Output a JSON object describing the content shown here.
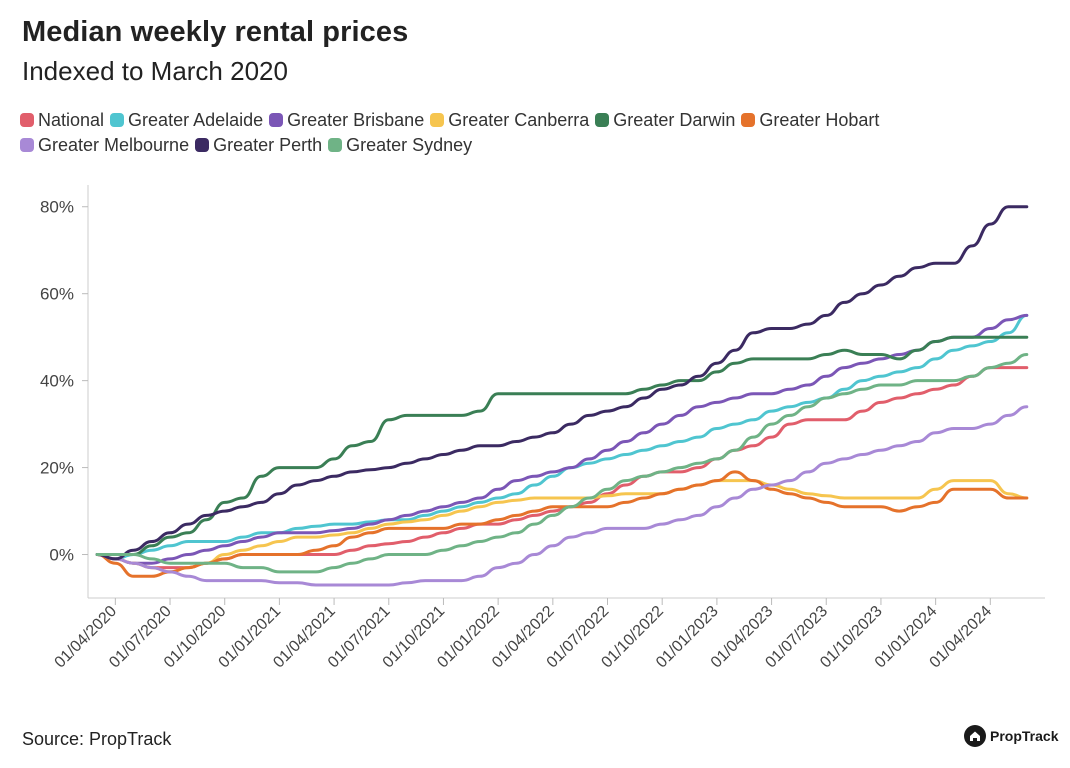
{
  "chart_data": {
    "type": "line",
    "title": "Median weekly rental prices",
    "subtitle": "Indexed to March 2020",
    "xlabel": "",
    "ylabel": "",
    "ylim": [
      -10,
      85
    ],
    "xlim": [
      -0.5,
      52
    ],
    "yticks": [
      0,
      20,
      40,
      60,
      80
    ],
    "ytick_labels": [
      "0%",
      "20%",
      "40%",
      "60%",
      "80%"
    ],
    "xticks": [
      1,
      4,
      7,
      10,
      13,
      16,
      19,
      22,
      25,
      28,
      31,
      34,
      37,
      40,
      43,
      46,
      49
    ],
    "xtick_labels": [
      "01/04/2020",
      "01/07/2020",
      "01/10/2020",
      "01/01/2021",
      "01/04/2021",
      "01/07/2021",
      "01/10/2021",
      "01/01/2022",
      "01/04/2022",
      "01/07/2022",
      "01/10/2022",
      "01/01/2023",
      "01/04/2023",
      "01/07/2023",
      "01/10/2023",
      "01/01/2024",
      "01/04/2024"
    ],
    "x_note": "x values are months since March 2020",
    "legend_position": "top",
    "series": [
      {
        "name": "National",
        "color": "#e15e6b",
        "x": [
          0,
          1,
          2,
          3,
          4,
          5,
          6,
          7,
          8,
          9,
          10,
          11,
          12,
          13,
          14,
          15,
          16,
          17,
          18,
          19,
          20,
          21,
          22,
          23,
          24,
          25,
          26,
          27,
          28,
          29,
          30,
          31,
          32,
          33,
          34,
          35,
          36,
          37,
          38,
          39,
          40,
          41,
          42,
          43,
          44,
          45,
          46,
          47,
          48,
          49,
          50,
          51
        ],
        "y": [
          0,
          -1,
          -2,
          -3,
          -3,
          -3,
          -2,
          -1,
          0,
          0,
          0,
          0,
          0,
          0,
          1,
          2,
          2.5,
          3,
          4,
          5,
          6,
          7,
          7,
          8,
          9,
          10,
          11,
          12,
          14,
          16,
          18,
          19,
          19,
          20,
          22,
          24,
          25,
          27,
          30,
          31,
          31,
          31,
          33,
          35,
          36,
          37,
          38,
          39,
          41,
          43,
          43,
          43
        ]
      },
      {
        "name": "Greater Adelaide",
        "color": "#4fc5d0",
        "x": [
          0,
          1,
          2,
          3,
          4,
          5,
          6,
          7,
          8,
          9,
          10,
          11,
          12,
          13,
          14,
          15,
          16,
          17,
          18,
          19,
          20,
          21,
          22,
          23,
          24,
          25,
          26,
          27,
          28,
          29,
          30,
          31,
          32,
          33,
          34,
          35,
          36,
          37,
          38,
          39,
          40,
          41,
          42,
          43,
          44,
          45,
          46,
          47,
          48,
          49,
          50,
          51
        ],
        "y": [
          0,
          -1,
          0,
          1,
          2,
          3,
          3,
          3,
          4,
          5,
          5,
          6,
          6.5,
          7,
          7,
          7.5,
          8,
          8,
          9,
          10,
          11,
          12,
          13,
          14,
          16,
          18,
          20,
          21,
          22,
          23,
          24,
          25,
          26,
          27,
          29,
          30,
          31,
          33,
          34,
          35,
          36,
          38,
          40,
          41,
          42,
          43,
          45,
          47,
          48,
          49,
          51,
          55
        ]
      },
      {
        "name": "Greater Brisbane",
        "color": "#7b56b6",
        "x": [
          0,
          1,
          2,
          3,
          4,
          5,
          6,
          7,
          8,
          9,
          10,
          11,
          12,
          13,
          14,
          15,
          16,
          17,
          18,
          19,
          20,
          21,
          22,
          23,
          24,
          25,
          26,
          27,
          28,
          29,
          30,
          31,
          32,
          33,
          34,
          35,
          36,
          37,
          38,
          39,
          40,
          41,
          42,
          43,
          44,
          45,
          46,
          47,
          48,
          49,
          50,
          51
        ],
        "y": [
          0,
          -1,
          -2,
          -2,
          -1,
          0,
          1,
          2,
          3,
          4,
          5,
          5,
          5,
          5.5,
          6,
          7,
          8,
          9,
          10,
          11,
          12,
          13,
          15,
          17,
          18,
          19,
          20,
          22,
          24,
          26,
          28,
          30,
          32,
          34,
          35,
          36,
          37,
          37,
          38,
          39,
          41,
          43,
          44,
          45,
          46,
          47,
          49,
          50,
          50,
          52,
          54,
          55
        ]
      },
      {
        "name": "Greater Canberra",
        "color": "#f6c54f",
        "x": [
          0,
          1,
          2,
          3,
          4,
          5,
          6,
          7,
          8,
          9,
          10,
          11,
          12,
          13,
          14,
          15,
          16,
          17,
          18,
          19,
          20,
          21,
          22,
          23,
          24,
          25,
          26,
          27,
          28,
          29,
          30,
          31,
          32,
          33,
          34,
          35,
          36,
          37,
          38,
          39,
          40,
          41,
          42,
          43,
          44,
          45,
          46,
          47,
          48,
          49,
          50,
          51
        ],
        "y": [
          0,
          -1,
          -2,
          -3,
          -4,
          -3,
          -2,
          0,
          1,
          2,
          3,
          4,
          4,
          4.5,
          5,
          6,
          7,
          7.5,
          8,
          9,
          10,
          11,
          12,
          12.5,
          13,
          13,
          13,
          13,
          13.5,
          14,
          14,
          14,
          15,
          16,
          17,
          17,
          17,
          16,
          15,
          14,
          13.5,
          13,
          13,
          13,
          13,
          13,
          15,
          17,
          17,
          17,
          14,
          13
        ]
      },
      {
        "name": "Greater Darwin",
        "color": "#3a7f55",
        "x": [
          0,
          1,
          2,
          3,
          4,
          5,
          6,
          7,
          8,
          9,
          10,
          11,
          12,
          13,
          14,
          15,
          16,
          17,
          18,
          19,
          20,
          21,
          22,
          23,
          24,
          25,
          26,
          27,
          28,
          29,
          30,
          31,
          32,
          33,
          34,
          35,
          36,
          37,
          38,
          39,
          40,
          41,
          42,
          43,
          44,
          45,
          46,
          47,
          48,
          49,
          50,
          51
        ],
        "y": [
          0,
          0,
          0,
          2,
          4,
          5,
          8,
          12,
          13,
          18,
          20,
          20,
          20,
          22,
          25,
          26,
          31,
          32,
          32,
          32,
          32,
          33,
          37,
          37,
          37,
          37,
          37,
          37,
          37,
          37,
          38,
          39,
          40,
          40,
          42,
          44,
          45,
          45,
          45,
          45,
          46,
          47,
          46,
          46,
          45,
          47,
          49,
          50,
          50,
          50,
          50,
          50
        ]
      },
      {
        "name": "Greater Hobart",
        "color": "#e5722b",
        "x": [
          0,
          1,
          2,
          3,
          4,
          5,
          6,
          7,
          8,
          9,
          10,
          11,
          12,
          13,
          14,
          15,
          16,
          17,
          18,
          19,
          20,
          21,
          22,
          23,
          24,
          25,
          26,
          27,
          28,
          29,
          30,
          31,
          32,
          33,
          34,
          35,
          36,
          37,
          38,
          39,
          40,
          41,
          42,
          43,
          44,
          45,
          46,
          47,
          48,
          49,
          50,
          51
        ],
        "y": [
          0,
          -2,
          -5,
          -5,
          -4,
          -3,
          -2,
          -1,
          0,
          0,
          0,
          0,
          1,
          2,
          4,
          5,
          6,
          6,
          6,
          6,
          7,
          7,
          8,
          9,
          10,
          11,
          11,
          11,
          11,
          12,
          13,
          14,
          15,
          16,
          17,
          19,
          17,
          15,
          14,
          13,
          12,
          11,
          11,
          11,
          10,
          11,
          12,
          15,
          15,
          15,
          13,
          13
        ]
      },
      {
        "name": "Greater Melbourne",
        "color": "#a889d6",
        "x": [
          0,
          1,
          2,
          3,
          4,
          5,
          6,
          7,
          8,
          9,
          10,
          11,
          12,
          13,
          14,
          15,
          16,
          17,
          18,
          19,
          20,
          21,
          22,
          23,
          24,
          25,
          26,
          27,
          28,
          29,
          30,
          31,
          32,
          33,
          34,
          35,
          36,
          37,
          38,
          39,
          40,
          41,
          42,
          43,
          44,
          45,
          46,
          47,
          48,
          49,
          50,
          51
        ],
        "y": [
          0,
          -1,
          -2,
          -3,
          -4,
          -5,
          -6,
          -6,
          -6,
          -6,
          -6.5,
          -6.5,
          -7,
          -7,
          -7,
          -7,
          -7,
          -6.5,
          -6,
          -6,
          -6,
          -5,
          -3,
          -2,
          0,
          2,
          4,
          5,
          6,
          6,
          6,
          7,
          8,
          9,
          11,
          13,
          15,
          16,
          17,
          19,
          21,
          22,
          23,
          24,
          25,
          26,
          28,
          29,
          29,
          30,
          32,
          34
        ]
      },
      {
        "name": "Greater Perth",
        "color": "#3b2a62",
        "x": [
          0,
          1,
          2,
          3,
          4,
          5,
          6,
          7,
          8,
          9,
          10,
          11,
          12,
          13,
          14,
          15,
          16,
          17,
          18,
          19,
          20,
          21,
          22,
          23,
          24,
          25,
          26,
          27,
          28,
          29,
          30,
          31,
          32,
          33,
          34,
          35,
          36,
          37,
          38,
          39,
          40,
          41,
          42,
          43,
          44,
          45,
          46,
          47,
          48,
          49,
          50,
          51
        ],
        "y": [
          0,
          -1,
          1,
          3,
          5,
          7,
          9,
          10,
          11,
          12,
          14,
          16,
          17,
          18,
          19,
          19.5,
          20,
          21,
          22,
          23,
          24,
          25,
          25,
          26,
          27,
          28,
          30,
          32,
          33,
          34,
          36,
          38,
          39,
          41,
          44,
          47,
          51,
          52,
          52,
          53,
          55,
          58,
          60,
          62,
          64,
          66,
          67,
          67,
          71,
          76,
          80,
          80
        ]
      },
      {
        "name": "Greater Sydney",
        "color": "#6fb386",
        "x": [
          0,
          1,
          2,
          3,
          4,
          5,
          6,
          7,
          8,
          9,
          10,
          11,
          12,
          13,
          14,
          15,
          16,
          17,
          18,
          19,
          20,
          21,
          22,
          23,
          24,
          25,
          26,
          27,
          28,
          29,
          30,
          31,
          32,
          33,
          34,
          35,
          36,
          37,
          38,
          39,
          40,
          41,
          42,
          43,
          44,
          45,
          46,
          47,
          48,
          49,
          50,
          51
        ],
        "y": [
          0,
          0,
          0,
          -1,
          -2,
          -2,
          -2,
          -2,
          -3,
          -3,
          -4,
          -4,
          -4,
          -3,
          -2,
          -1,
          0,
          0,
          0,
          1,
          2,
          3,
          4,
          5,
          7,
          9,
          11,
          13,
          15,
          17,
          18,
          19,
          20,
          21,
          22,
          24,
          27,
          30,
          32,
          34,
          36,
          37,
          38,
          39,
          39,
          40,
          40,
          40,
          41,
          43,
          44,
          46
        ]
      }
    ],
    "source": "Source: PropTrack",
    "brand": "PropTrack"
  }
}
